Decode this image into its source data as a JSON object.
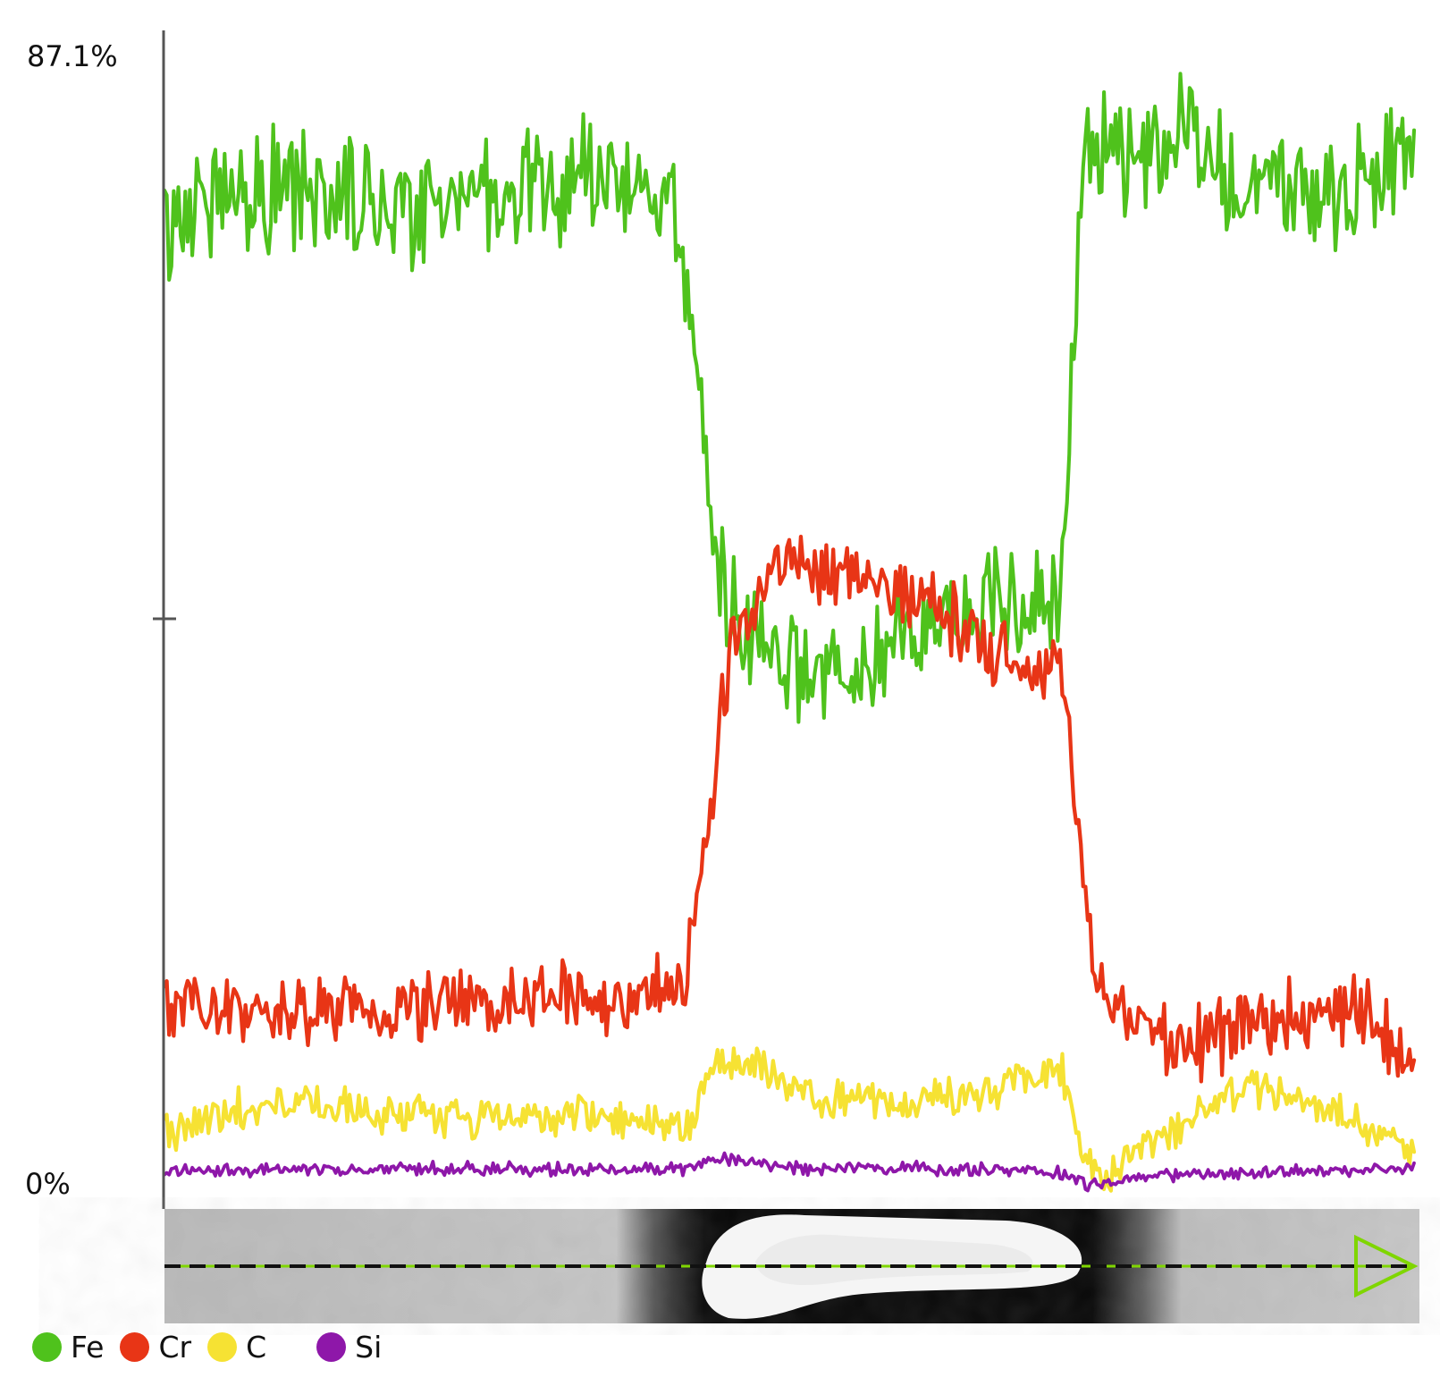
{
  "chart_data": {
    "type": "line",
    "x_sample_count": 541,
    "y_labels": {
      "top": "87.1%",
      "bottom": "0%"
    },
    "ylim": [
      0,
      87.1
    ],
    "grid": false,
    "legend_position": "bottom-left",
    "series": [
      {
        "name": "Fe",
        "color": "#4fc21c",
        "profile_points": [
          [
            0,
            72.0
          ],
          [
            20,
            75.5
          ],
          [
            60,
            75.0
          ],
          [
            100,
            74.5
          ],
          [
            140,
            75.2
          ],
          [
            190,
            76.0
          ],
          [
            220,
            74.8
          ],
          [
            230,
            60.0
          ],
          [
            240,
            48.0
          ],
          [
            248,
            42.0
          ],
          [
            260,
            39.5
          ],
          [
            280,
            38.5
          ],
          [
            300,
            39.0
          ],
          [
            320,
            41.0
          ],
          [
            340,
            43.0
          ],
          [
            370,
            44.5
          ],
          [
            388,
            45.0
          ],
          [
            392,
            65.0
          ],
          [
            398,
            77.0
          ],
          [
            420,
            78.0
          ],
          [
            440,
            79.0
          ],
          [
            470,
            75.5
          ],
          [
            500,
            75.0
          ],
          [
            520,
            76.0
          ],
          [
            540,
            78.0
          ]
        ],
        "noise": 4.2
      },
      {
        "name": "Cr",
        "color": "#e83516",
        "profile_points": [
          [
            0,
            14.2
          ],
          [
            40,
            14.0
          ],
          [
            80,
            13.5
          ],
          [
            120,
            14.5
          ],
          [
            160,
            14.3
          ],
          [
            200,
            14.8
          ],
          [
            225,
            15.5
          ],
          [
            235,
            28.0
          ],
          [
            245,
            41.0
          ],
          [
            265,
            47.5
          ],
          [
            285,
            47.0
          ],
          [
            305,
            45.5
          ],
          [
            330,
            44.5
          ],
          [
            355,
            41.0
          ],
          [
            375,
            39.5
          ],
          [
            388,
            39.0
          ],
          [
            396,
            25.0
          ],
          [
            404,
            15.0
          ],
          [
            420,
            13.0
          ],
          [
            440,
            11.0
          ],
          [
            460,
            12.0
          ],
          [
            480,
            13.0
          ],
          [
            500,
            13.2
          ],
          [
            520,
            13.5
          ],
          [
            540,
            9.0
          ]
        ],
        "noise": 2.5
      },
      {
        "name": "C",
        "color": "#f6e233",
        "profile_points": [
          [
            0,
            4.5
          ],
          [
            20,
            6.0
          ],
          [
            60,
            6.8
          ],
          [
            100,
            6.0
          ],
          [
            140,
            5.5
          ],
          [
            180,
            5.8
          ],
          [
            225,
            5.0
          ],
          [
            238,
            9.5
          ],
          [
            250,
            10.0
          ],
          [
            270,
            8.5
          ],
          [
            290,
            6.8
          ],
          [
            320,
            6.5
          ],
          [
            350,
            7.5
          ],
          [
            388,
            9.5
          ],
          [
            395,
            3.5
          ],
          [
            405,
            1.0
          ],
          [
            420,
            3.0
          ],
          [
            440,
            4.8
          ],
          [
            470,
            8.0
          ],
          [
            500,
            6.8
          ],
          [
            520,
            5.0
          ],
          [
            540,
            3.5
          ]
        ],
        "noise": 1.4
      },
      {
        "name": "Si",
        "color": "#8e17a9",
        "profile_points": [
          [
            0,
            1.6
          ],
          [
            60,
            1.8
          ],
          [
            140,
            1.8
          ],
          [
            225,
            1.8
          ],
          [
            240,
            2.5
          ],
          [
            280,
            1.8
          ],
          [
            350,
            1.8
          ],
          [
            390,
            1.5
          ],
          [
            400,
            0.5
          ],
          [
            420,
            1.2
          ],
          [
            480,
            1.6
          ],
          [
            540,
            1.8
          ]
        ],
        "noise": 0.45
      }
    ]
  }
}
